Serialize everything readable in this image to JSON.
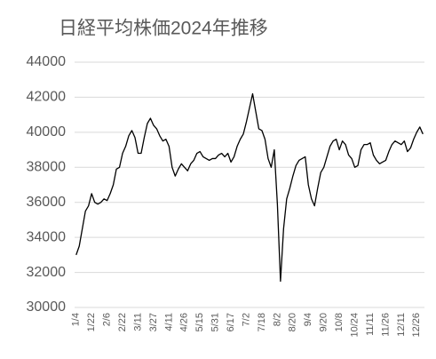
{
  "chart_data": {
    "type": "line",
    "title": "日経平均株価2024年推移",
    "categories": [
      "1/4",
      null,
      null,
      null,
      null,
      "1/22",
      null,
      null,
      null,
      null,
      "2/6",
      null,
      null,
      null,
      null,
      "2/22",
      null,
      null,
      null,
      null,
      "3/11",
      null,
      null,
      null,
      null,
      "3/27",
      null,
      null,
      null,
      null,
      "4/11",
      null,
      null,
      null,
      null,
      "4/26",
      null,
      null,
      null,
      null,
      "5/15",
      null,
      null,
      null,
      null,
      "5/31",
      null,
      null,
      null,
      null,
      "6/17",
      null,
      null,
      null,
      null,
      "7/2",
      null,
      null,
      null,
      null,
      "7/18",
      null,
      null,
      null,
      null,
      "8/2",
      null,
      null,
      null,
      null,
      "8/20",
      null,
      null,
      null,
      null,
      "9/4",
      null,
      null,
      null,
      null,
      "9/20",
      null,
      null,
      null,
      null,
      "10/8",
      null,
      null,
      null,
      null,
      "10/24",
      null,
      null,
      null,
      null,
      "11/11",
      null,
      null,
      null,
      null,
      "11/26",
      null,
      null,
      null,
      null,
      "12/11",
      null,
      null,
      null,
      null,
      "12/26",
      null,
      null
    ],
    "values": [
      33000,
      33500,
      34500,
      35500,
      35800,
      36500,
      36000,
      35900,
      36000,
      36200,
      36100,
      36500,
      37000,
      37900,
      38000,
      38800,
      39200,
      39800,
      40100,
      39700,
      38800,
      38800,
      39700,
      40500,
      40800,
      40400,
      40200,
      39800,
      39500,
      39600,
      39200,
      38000,
      37500,
      37900,
      38200,
      38000,
      37800,
      38200,
      38400,
      38800,
      38900,
      38600,
      38500,
      38400,
      38500,
      38500,
      38700,
      38800,
      38600,
      38800,
      38300,
      38600,
      39200,
      39600,
      39900,
      40600,
      41400,
      42200,
      41200,
      40200,
      40100,
      39600,
      38500,
      38000,
      39000,
      35900,
      31500,
      34500,
      36200,
      36800,
      37500,
      38100,
      38400,
      38500,
      38600,
      37000,
      36200,
      35800,
      36800,
      37700,
      38000,
      38600,
      39200,
      39500,
      39600,
      39000,
      39500,
      39300,
      38700,
      38500,
      38000,
      38100,
      39000,
      39300,
      39300,
      39400,
      38700,
      38400,
      38200,
      38300,
      38400,
      38900,
      39300,
      39500,
      39400,
      39300,
      39500,
      38900,
      39100,
      39600,
      40000,
      40300,
      39900
    ],
    "color": "#000000",
    "ylim": [
      30000,
      44000
    ],
    "yticks": [
      30000,
      32000,
      34000,
      36000,
      38000,
      40000,
      42000,
      44000
    ],
    "grid": true
  }
}
